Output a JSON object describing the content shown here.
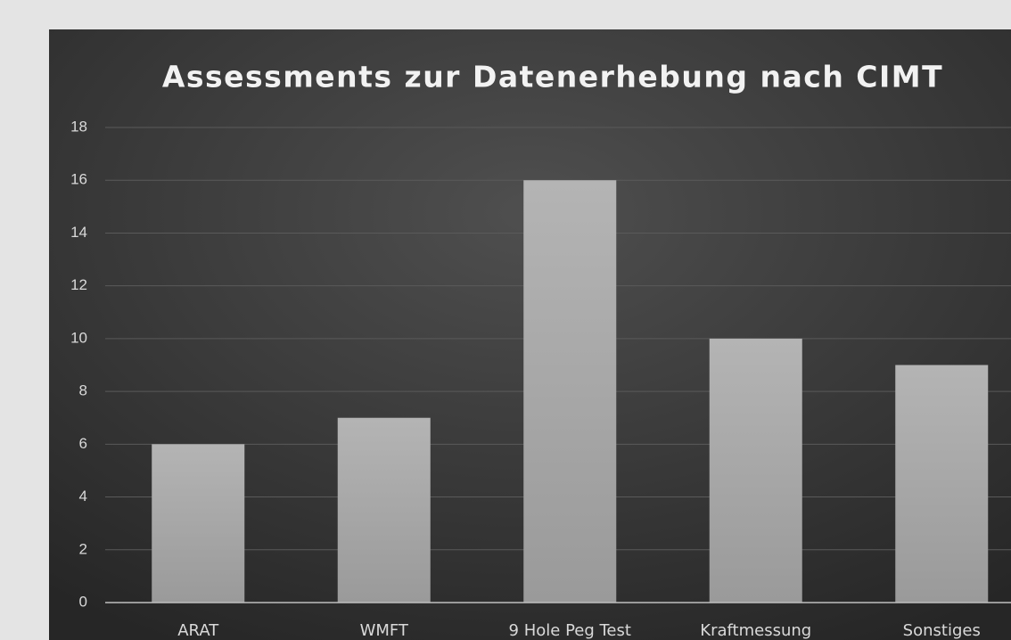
{
  "chart_data": {
    "type": "bar",
    "title": "Assessments zur Datenerhebung nach CIMT",
    "categories": [
      "ARAT",
      "WMFT",
      "9 Hole Peg Test",
      "Kraftmessung",
      "Sonstiges"
    ],
    "values": [
      6,
      7,
      16,
      10,
      9
    ],
    "color": "#a8a8a8",
    "ylim": [
      0,
      18
    ],
    "yticks": [
      0,
      2,
      4,
      6,
      8,
      10,
      12,
      14,
      16,
      18
    ],
    "grid": true
  }
}
